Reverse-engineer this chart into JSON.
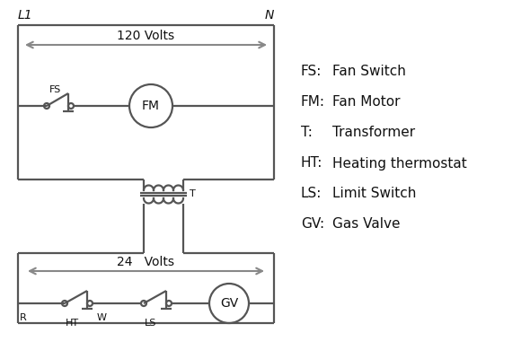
{
  "bg_color": "#ffffff",
  "line_color": "#555555",
  "text_color": "#111111",
  "legend": {
    "FS": "Fan Switch",
    "FM": "Fan Motor",
    "T": "Transformer",
    "HT": "Heating thermostat",
    "LS": "Limit Switch",
    "GV": "Gas Valve"
  },
  "top_left_label": "L1",
  "top_right_label": "N",
  "volts120_label": "120 Volts",
  "volts24_label": "24   Volts",
  "fig_w": 5.9,
  "fig_h": 4.0,
  "dpi": 100
}
